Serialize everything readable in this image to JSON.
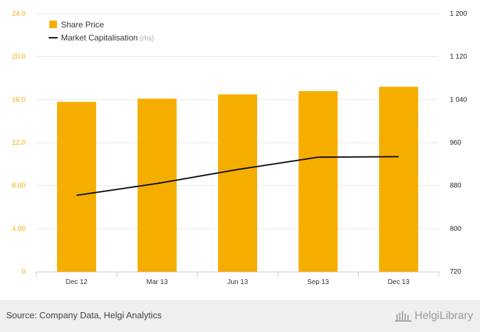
{
  "chart_data": {
    "type": "bar",
    "categories": [
      "Dec 12",
      "Mar 13",
      "Jun 13",
      "Sep 13",
      "Dec 13"
    ],
    "series": [
      {
        "name": "Share Price",
        "type": "bar",
        "axis": "left",
        "color": "#f5ae00",
        "values": [
          15.8,
          16.1,
          16.5,
          16.8,
          17.2
        ]
      },
      {
        "name": "Market Capitalisation",
        "type": "line",
        "axis": "right",
        "color": "#111111",
        "values": [
          862,
          884,
          910,
          933,
          934
        ]
      }
    ],
    "y_left": {
      "ticks": [
        "0",
        "4.00",
        "8.00",
        "12.0",
        "16.0",
        "20.0",
        "24.0"
      ],
      "ylim": [
        0,
        24
      ],
      "tick_color": "#f5ae00"
    },
    "y_right": {
      "ticks": [
        "720",
        "800",
        "880",
        "960",
        "1 040",
        "1 120",
        "1 200"
      ],
      "ylim": [
        720,
        1200
      ]
    },
    "legend": {
      "position": "top-left",
      "rhs_note": "(rhs)"
    },
    "grid": true
  },
  "footer": {
    "source": "Source: Company Data, Helgi Analytics",
    "logo_text": "HelgiLibrary"
  },
  "logo": {
    "icon": "library-building-icon"
  }
}
